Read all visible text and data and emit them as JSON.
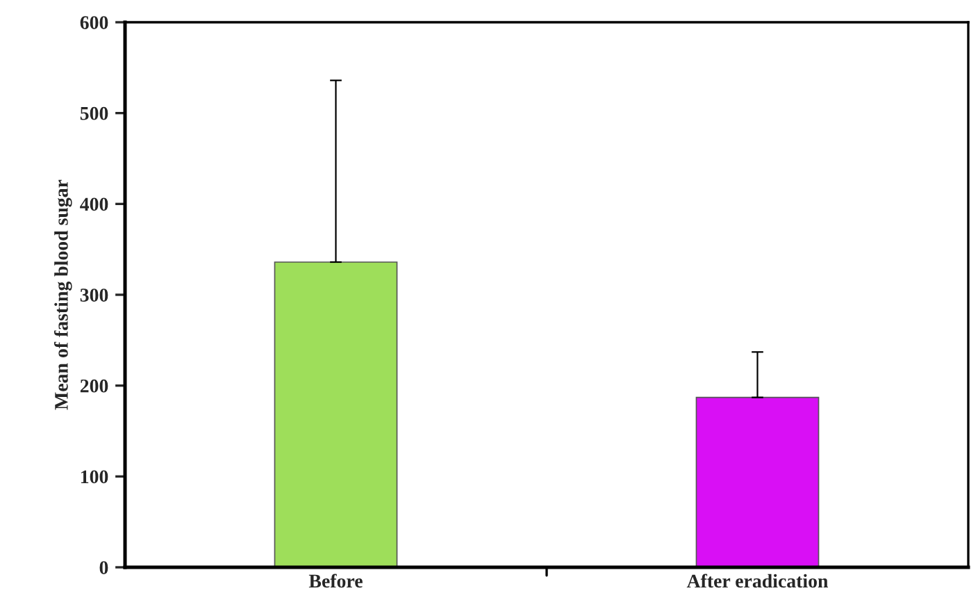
{
  "chart_data": {
    "type": "bar",
    "ylabel": "Mean of fasting blood sugar",
    "categories": [
      "Before",
      "After eradication"
    ],
    "values": [
      336,
      187
    ],
    "errors": [
      [
        336,
        536
      ],
      [
        187,
        237
      ]
    ],
    "colors": [
      "#9ede5a",
      "#d90ff5"
    ],
    "ylim": [
      0,
      600
    ],
    "yticks": [
      0,
      100,
      200,
      300,
      400,
      500,
      600
    ],
    "grid": false,
    "legend": false
  }
}
